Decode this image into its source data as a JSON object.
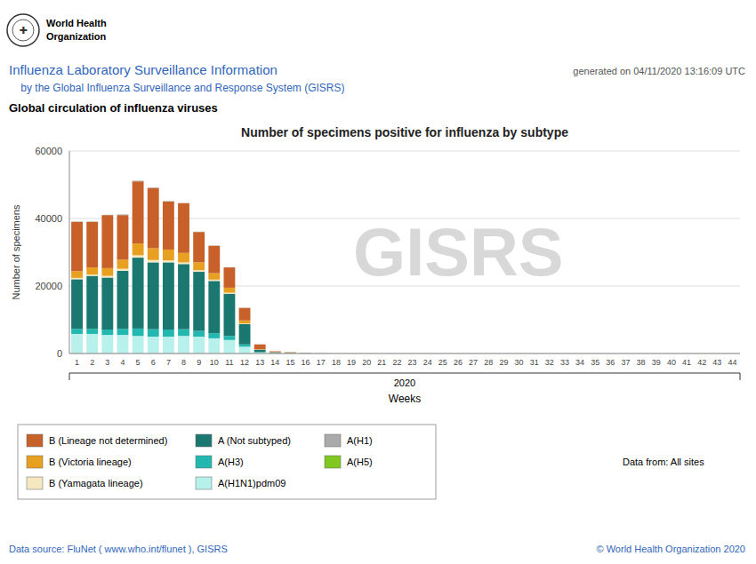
{
  "chart_data": {
    "type": "bar",
    "stacked": true,
    "title": "Number of specimens positive for influenza by subtype",
    "xlabel": "Weeks",
    "ylabel": "Number of specimens",
    "ylim": [
      0,
      60000
    ],
    "yticks": [
      0,
      20000,
      40000,
      60000
    ],
    "grid": true,
    "legend": "bottom",
    "categories": [
      "1",
      "2",
      "3",
      "4",
      "5",
      "6",
      "7",
      "8",
      "9",
      "10",
      "11",
      "12",
      "13",
      "14",
      "15",
      "16",
      "17",
      "18",
      "19",
      "20",
      "21",
      "22",
      "23",
      "24",
      "25",
      "26",
      "27",
      "28",
      "29",
      "30",
      "31",
      "32",
      "33",
      "34",
      "35",
      "36",
      "37",
      "38",
      "39",
      "40",
      "41",
      "42",
      "43",
      "44"
    ],
    "series": [
      {
        "name": "A(H1N1)pdm09",
        "color": "#b8f0ec",
        "values": [
          5800,
          5800,
          5500,
          5500,
          5200,
          5000,
          5000,
          5200,
          5000,
          4500,
          4000,
          2000,
          300,
          100,
          50,
          20,
          5,
          0,
          0,
          0,
          0,
          0,
          0,
          0,
          0,
          0,
          0,
          0,
          0,
          0,
          0,
          0,
          0,
          0,
          0,
          0,
          0,
          0,
          0,
          0,
          0,
          0,
          0,
          0
        ]
      },
      {
        "name": "A(H3)",
        "color": "#22b8b0",
        "values": [
          1500,
          1500,
          1600,
          1800,
          2200,
          2200,
          2100,
          2000,
          1700,
          1500,
          1200,
          700,
          150,
          80,
          40,
          20,
          5,
          0,
          0,
          0,
          0,
          0,
          0,
          0,
          0,
          0,
          0,
          0,
          0,
          0,
          0,
          0,
          0,
          0,
          0,
          0,
          0,
          0,
          0,
          0,
          0,
          0,
          0,
          0
        ]
      },
      {
        "name": "A (Not subtyped)",
        "color": "#1a7870",
        "values": [
          14700,
          15700,
          15400,
          17200,
          21000,
          19800,
          19900,
          19300,
          17500,
          15500,
          12500,
          6000,
          700,
          200,
          100,
          50,
          15,
          0,
          0,
          0,
          0,
          0,
          0,
          0,
          0,
          0,
          0,
          0,
          0,
          0,
          0,
          0,
          0,
          0,
          0,
          0,
          0,
          0,
          0,
          0,
          0,
          0,
          0,
          0
        ]
      },
      {
        "name": "B (Yamagata lineage)",
        "color": "#f5e8c0",
        "values": [
          400,
          400,
          500,
          600,
          700,
          700,
          600,
          500,
          500,
          400,
          300,
          200,
          30,
          15,
          8,
          5,
          2,
          0,
          0,
          0,
          0,
          0,
          0,
          0,
          0,
          0,
          0,
          0,
          0,
          0,
          0,
          0,
          0,
          0,
          0,
          0,
          0,
          0,
          0,
          0,
          0,
          0,
          0,
          0
        ]
      },
      {
        "name": "B (Victoria lineage)",
        "color": "#e8a020",
        "values": [
          2000,
          2100,
          2300,
          2700,
          3500,
          3500,
          3200,
          2800,
          2300,
          1900,
          1500,
          900,
          120,
          60,
          30,
          15,
          5,
          0,
          0,
          0,
          0,
          0,
          0,
          0,
          0,
          0,
          0,
          0,
          0,
          0,
          0,
          0,
          0,
          0,
          0,
          0,
          0,
          0,
          0,
          0,
          0,
          0,
          0,
          0
        ]
      },
      {
        "name": "B (Lineage not determined)",
        "color": "#c8602a",
        "values": [
          14600,
          13500,
          15700,
          13200,
          18400,
          17800,
          14200,
          14700,
          9000,
          8100,
          6000,
          3700,
          1400,
          200,
          150,
          60,
          20,
          0,
          0,
          0,
          0,
          0,
          0,
          0,
          0,
          0,
          0,
          0,
          0,
          0,
          0,
          0,
          0,
          0,
          0,
          0,
          0,
          0,
          0,
          0,
          0,
          0,
          0,
          0
        ]
      },
      {
        "name": "A(H1)",
        "color": "#aaaaaa",
        "values": [
          100,
          100,
          100,
          200,
          200,
          200,
          150,
          100,
          100,
          100,
          80,
          60,
          10,
          5,
          5,
          0,
          0,
          0,
          0,
          0,
          0,
          0,
          0,
          0,
          0,
          0,
          0,
          0,
          0,
          0,
          0,
          0,
          0,
          0,
          0,
          0,
          0,
          0,
          0,
          0,
          0,
          0,
          0,
          0
        ]
      },
      {
        "name": "A(H5)",
        "color": "#80c820",
        "values": [
          0,
          0,
          0,
          0,
          0,
          0,
          0,
          0,
          0,
          0,
          0,
          0,
          0,
          0,
          0,
          0,
          0,
          0,
          0,
          0,
          0,
          0,
          0,
          0,
          0,
          0,
          0,
          0,
          0,
          0,
          0,
          0,
          0,
          0,
          0,
          0,
          0,
          0,
          0,
          0,
          0,
          0,
          0,
          0
        ]
      }
    ],
    "annotations": [
      "GISRS",
      "2020",
      "Data from: All sites",
      "Influenza Laboratory Surveillance Information",
      "    by the Global Influenza Surveillance and Response System (GISRS)",
      "generated on 04/11/2020 13:16:09 UTC",
      "Global circulation of influenza viruses",
      "Data source: FluNet ( www.who.int/flunet ),  GISRS",
      "© World Health Organization 2020",
      "World Health",
      "Organization",
      "✚"
    ]
  }
}
